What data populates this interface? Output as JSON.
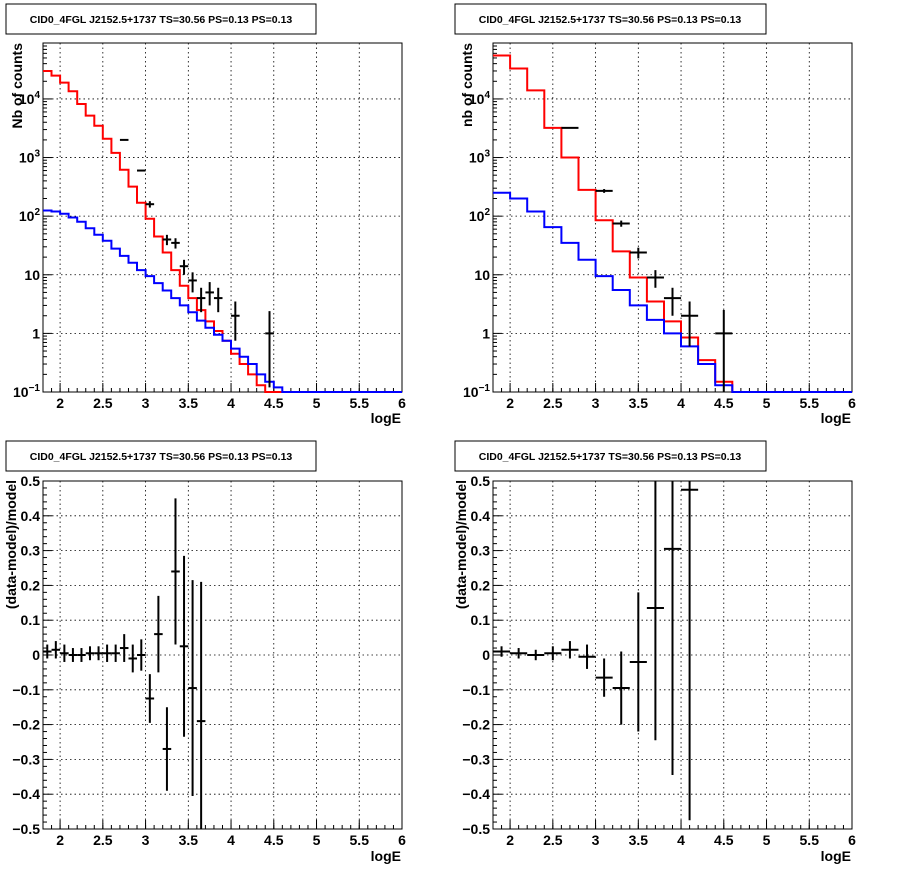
{
  "colors": {
    "data": "#000000",
    "total_model": "#ff0000",
    "source_model": "#0000ff",
    "grid": "#000000",
    "background": "#ffffff"
  },
  "chart_data": [
    {
      "type": "line",
      "title": "CID0_4FGL J2152.5+1737 TS=30.56 PS=0.13 PS=0.13",
      "xlabel": "logE",
      "ylabel": "Nb of counts",
      "xlim": [
        1.8,
        6
      ],
      "ylim": [
        0.1,
        90000
      ],
      "yscale": "log",
      "grid": true,
      "x_ticks": [
        "2",
        "2.5",
        "3",
        "3.5",
        "4",
        "4.5",
        "5",
        "5.5",
        "6"
      ],
      "y_ticks": [
        "10^-1",
        "1",
        "10",
        "10^2",
        "10^3",
        "10^4"
      ],
      "bin_edges": [
        1.8,
        1.9,
        2.0,
        2.1,
        2.2,
        2.3,
        2.4,
        2.5,
        2.6,
        2.7,
        2.8,
        2.9,
        3.0,
        3.1,
        3.2,
        3.3,
        3.4,
        3.5,
        3.6,
        3.7,
        3.8,
        3.9,
        4.0,
        4.1,
        4.2,
        4.3,
        4.4,
        4.5,
        4.6,
        4.7,
        4.8,
        4.9,
        5.0,
        5.1,
        5.2,
        5.3,
        5.4,
        5.5,
        5.6,
        5.7,
        5.8,
        5.9,
        6.0
      ],
      "series": [
        {
          "role": "total_model",
          "values": [
            30000,
            25000,
            19000,
            13500,
            8200,
            5200,
            3500,
            2100,
            1200,
            620,
            320,
            170,
            90,
            45,
            24,
            12,
            6.5,
            4.0,
            2.5,
            1.6,
            1.1,
            0.75,
            0.45,
            0.3,
            0.2,
            0.13,
            0.1,
            0.1,
            0.1,
            0.1,
            0.1,
            0.1,
            0.1,
            0.1,
            0.1,
            0.1,
            0.1,
            0.1,
            0.1,
            0.1,
            0.1,
            0.1
          ]
        },
        {
          "role": "source_model",
          "values": [
            125,
            120,
            110,
            95,
            80,
            62,
            48,
            38,
            28,
            21,
            16,
            12,
            9.5,
            7.2,
            5.4,
            4.0,
            3.0,
            2.3,
            1.65,
            1.25,
            0.95,
            0.75,
            0.55,
            0.4,
            0.3,
            0.2,
            0.15,
            0.12,
            0.1,
            0.1,
            0.1,
            0.1,
            0.1,
            0.1,
            0.1,
            0.1,
            0.1,
            0.1,
            0.1,
            0.1,
            0.1,
            0.1
          ]
        },
        {
          "role": "data",
          "points": [
            {
              "x": 2.75,
              "y": 2000,
              "xerr": 0.05
            },
            {
              "x": 2.95,
              "y": 600,
              "xerr": 0.05
            },
            {
              "x": 3.05,
              "y": 160,
              "xerr": 0.05,
              "lo": 140,
              "hi": 180
            },
            {
              "x": 3.25,
              "y": 40,
              "xerr": 0.05,
              "lo": 32,
              "hi": 48
            },
            {
              "x": 3.35,
              "y": 35,
              "xerr": 0.05,
              "lo": 28,
              "hi": 42
            },
            {
              "x": 3.45,
              "y": 14,
              "xerr": 0.05,
              "lo": 10,
              "hi": 18
            },
            {
              "x": 3.55,
              "y": 8,
              "xerr": 0.05,
              "lo": 5,
              "hi": 11
            },
            {
              "x": 3.65,
              "y": 4,
              "xerr": 0.05,
              "lo": 2.3,
              "hi": 6
            },
            {
              "x": 3.75,
              "y": 5,
              "xerr": 0.05,
              "lo": 3,
              "hi": 7.5
            },
            {
              "x": 3.85,
              "y": 4,
              "xerr": 0.05,
              "lo": 2.3,
              "hi": 6
            },
            {
              "x": 4.05,
              "y": 2,
              "xerr": 0.05,
              "lo": 0.75,
              "hi": 3.5
            },
            {
              "x": 4.45,
              "y": 1,
              "xerr": 0.05,
              "lo": 0.12,
              "hi": 2.4
            }
          ]
        }
      ]
    },
    {
      "type": "line",
      "title": "CID0_4FGL J2152.5+1737 TS=30.56 PS=0.13 PS=0.13",
      "xlabel": "logE",
      "ylabel": "nb of counts",
      "xlim": [
        1.8,
        6
      ],
      "ylim": [
        0.1,
        90000
      ],
      "yscale": "log",
      "grid": true,
      "x_ticks": [
        "2",
        "2.5",
        "3",
        "3.5",
        "4",
        "4.5",
        "5",
        "5.5",
        "6"
      ],
      "y_ticks": [
        "10^-1",
        "1",
        "10",
        "10^2",
        "10^3",
        "10^4"
      ],
      "bin_edges": [
        1.8,
        2.0,
        2.2,
        2.4,
        2.6,
        2.8,
        3.0,
        3.2,
        3.4,
        3.6,
        3.8,
        4.0,
        4.2,
        4.4,
        4.6,
        4.8,
        5.0,
        5.2,
        5.4,
        5.6,
        5.8,
        6.0
      ],
      "series": [
        {
          "role": "total_model",
          "values": [
            55000,
            33000,
            14000,
            3200,
            1000,
            280,
            85,
            25,
            9,
            3.5,
            1.6,
            0.85,
            0.35,
            0.15,
            0.1,
            0.1,
            0.1,
            0.1,
            0.1,
            0.1,
            0.1
          ]
        },
        {
          "role": "source_model",
          "values": [
            250,
            200,
            120,
            65,
            35,
            18,
            9.5,
            5.5,
            3.0,
            1.7,
            1.0,
            0.6,
            0.3,
            0.13,
            0.1,
            0.1,
            0.1,
            0.1,
            0.1,
            0.1,
            0.1
          ]
        },
        {
          "role": "data",
          "points": [
            {
              "x": 2.7,
              "y": 3200,
              "xerr": 0.1
            },
            {
              "x": 3.1,
              "y": 270,
              "xerr": 0.1,
              "lo": 250,
              "hi": 290
            },
            {
              "x": 3.3,
              "y": 75,
              "xerr": 0.1,
              "lo": 66,
              "hi": 84
            },
            {
              "x": 3.5,
              "y": 24,
              "xerr": 0.1,
              "lo": 19,
              "hi": 29
            },
            {
              "x": 3.7,
              "y": 9,
              "xerr": 0.1,
              "lo": 6,
              "hi": 12
            },
            {
              "x": 3.9,
              "y": 4,
              "xerr": 0.1,
              "lo": 2,
              "hi": 6
            },
            {
              "x": 4.1,
              "y": 2,
              "xerr": 0.1,
              "lo": 0.6,
              "hi": 3.5
            },
            {
              "x": 4.5,
              "y": 1,
              "xerr": 0.1,
              "lo": 0.1,
              "hi": 2.5
            }
          ]
        }
      ]
    },
    {
      "type": "scatter",
      "title": "CID0_4FGL J2152.5+1737 TS=30.56 PS=0.13 PS=0.13",
      "xlabel": "logE",
      "ylabel": "(data-model)/model",
      "xlim": [
        1.8,
        6
      ],
      "ylim": [
        -0.5,
        0.5
      ],
      "grid": true,
      "x_ticks": [
        "2",
        "2.5",
        "3",
        "3.5",
        "4",
        "4.5",
        "5",
        "5.5",
        "6"
      ],
      "y_ticks": [
        "−0.5",
        "−0.4",
        "−0.3",
        "−0.2",
        "−0.1",
        "0",
        "0.1",
        "0.2",
        "0.3",
        "0.4",
        "0.5"
      ],
      "series": [
        {
          "role": "data",
          "points": [
            {
              "x": 1.85,
              "y": 0.01,
              "xerr": 0.05,
              "err": 0.02
            },
            {
              "x": 1.95,
              "y": 0.015,
              "xerr": 0.05,
              "err": 0.025
            },
            {
              "x": 2.05,
              "y": 0.005,
              "xerr": 0.05,
              "err": 0.025
            },
            {
              "x": 2.15,
              "y": 0.0,
              "xerr": 0.05,
              "err": 0.02
            },
            {
              "x": 2.25,
              "y": 0.0,
              "xerr": 0.05,
              "err": 0.02
            },
            {
              "x": 2.35,
              "y": 0.005,
              "xerr": 0.05,
              "err": 0.02
            },
            {
              "x": 2.45,
              "y": 0.005,
              "xerr": 0.05,
              "err": 0.02
            },
            {
              "x": 2.55,
              "y": 0.005,
              "xerr": 0.05,
              "err": 0.025
            },
            {
              "x": 2.65,
              "y": 0.005,
              "xerr": 0.05,
              "err": 0.025
            },
            {
              "x": 2.75,
              "y": 0.02,
              "xerr": 0.05,
              "err": 0.04
            },
            {
              "x": 2.85,
              "y": -0.01,
              "xerr": 0.05,
              "err": 0.04
            },
            {
              "x": 2.95,
              "y": 0.0,
              "xerr": 0.05,
              "err": 0.045
            },
            {
              "x": 3.05,
              "y": -0.125,
              "xerr": 0.05,
              "err": 0.07
            },
            {
              "x": 3.15,
              "y": 0.06,
              "xerr": 0.05,
              "err": 0.11
            },
            {
              "x": 3.25,
              "y": -0.27,
              "xerr": 0.05,
              "err": 0.12
            },
            {
              "x": 3.35,
              "y": 0.24,
              "xerr": 0.05,
              "err": 0.21
            },
            {
              "x": 3.45,
              "y": 0.025,
              "xerr": 0.05,
              "err": 0.26
            },
            {
              "x": 3.55,
              "y": -0.095,
              "xerr": 0.05,
              "err": 0.31
            },
            {
              "x": 3.65,
              "y": -0.19,
              "xerr": 0.05,
              "err": 0.4
            }
          ]
        }
      ]
    },
    {
      "type": "scatter",
      "title": "CID0_4FGL J2152.5+1737 TS=30.56 PS=0.13 PS=0.13",
      "xlabel": "logE",
      "ylabel": "(data-model)/model",
      "xlim": [
        1.8,
        6
      ],
      "ylim": [
        -0.5,
        0.5
      ],
      "grid": true,
      "x_ticks": [
        "2",
        "2.5",
        "3",
        "3.5",
        "4",
        "4.5",
        "5",
        "5.5",
        "6"
      ],
      "y_ticks": [
        "−0.5",
        "−0.4",
        "−0.3",
        "−0.2",
        "−0.1",
        "0",
        "0.1",
        "0.2",
        "0.3",
        "0.4",
        "0.5"
      ],
      "series": [
        {
          "role": "data",
          "points": [
            {
              "x": 1.9,
              "y": 0.01,
              "xerr": 0.1,
              "err": 0.015
            },
            {
              "x": 2.1,
              "y": 0.005,
              "xerr": 0.1,
              "err": 0.015
            },
            {
              "x": 2.3,
              "y": 0.0,
              "xerr": 0.1,
              "err": 0.015
            },
            {
              "x": 2.5,
              "y": 0.005,
              "xerr": 0.1,
              "err": 0.02
            },
            {
              "x": 2.7,
              "y": 0.015,
              "xerr": 0.1,
              "err": 0.025
            },
            {
              "x": 2.9,
              "y": -0.005,
              "xerr": 0.1,
              "err": 0.035
            },
            {
              "x": 3.1,
              "y": -0.065,
              "xerr": 0.1,
              "err": 0.055
            },
            {
              "x": 3.3,
              "y": -0.095,
              "xerr": 0.1,
              "err": 0.105
            },
            {
              "x": 3.5,
              "y": -0.02,
              "xerr": 0.1,
              "err": 0.2
            },
            {
              "x": 3.7,
              "y": 0.135,
              "xerr": 0.1,
              "err": 0.38
            },
            {
              "x": 3.9,
              "y": 0.305,
              "xerr": 0.1,
              "err": 0.65
            },
            {
              "x": 4.1,
              "y": 0.475,
              "xerr": 0.1,
              "err": 0.95
            }
          ]
        }
      ]
    }
  ]
}
